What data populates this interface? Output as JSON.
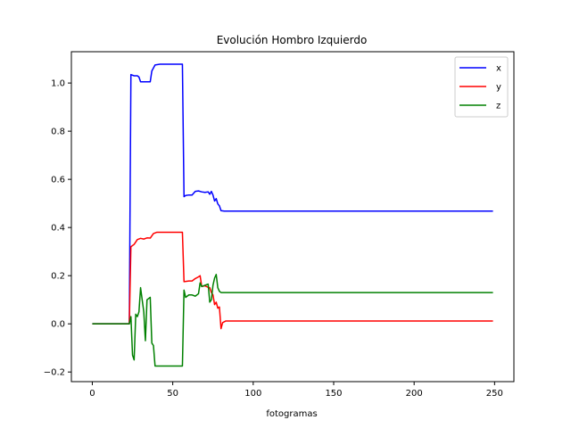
{
  "chart_data": {
    "type": "line",
    "title": "Evolución Hombro Izquierdo",
    "xlabel": "fotogramas",
    "ylabel": "",
    "xlim": [
      -13,
      262
    ],
    "ylim": [
      -0.24,
      1.13
    ],
    "xticks": [
      0,
      50,
      100,
      150,
      200,
      250
    ],
    "xtick_labels": [
      "0",
      "50",
      "100",
      "150",
      "200",
      "250"
    ],
    "yticks": [
      -0.2,
      0.0,
      0.2,
      0.4,
      0.6,
      0.8,
      1.0
    ],
    "ytick_labels": [
      "−0.2",
      "0.0",
      "0.2",
      "0.4",
      "0.6",
      "0.8",
      "1.0"
    ],
    "grid": false,
    "legend_position": "top-right",
    "series": [
      {
        "name": "x",
        "color": "#0000ff",
        "points": [
          [
            0,
            0
          ],
          [
            23,
            0
          ],
          [
            24,
            1.035
          ],
          [
            26,
            1.03
          ],
          [
            28,
            1.03
          ],
          [
            29,
            1.025
          ],
          [
            30,
            1.005
          ],
          [
            32,
            1.005
          ],
          [
            34,
            1.005
          ],
          [
            36,
            1.005
          ],
          [
            37,
            1.05
          ],
          [
            39,
            1.075
          ],
          [
            42,
            1.078
          ],
          [
            48,
            1.078
          ],
          [
            52,
            1.078
          ],
          [
            55,
            1.078
          ],
          [
            56,
            1.078
          ],
          [
            57,
            0.528
          ],
          [
            58,
            0.533
          ],
          [
            60,
            0.535
          ],
          [
            62,
            0.535
          ],
          [
            64,
            0.55
          ],
          [
            66,
            0.552
          ],
          [
            68,
            0.548
          ],
          [
            70,
            0.546
          ],
          [
            72,
            0.548
          ],
          [
            73,
            0.538
          ],
          [
            74,
            0.55
          ],
          [
            75,
            0.535
          ],
          [
            76,
            0.51
          ],
          [
            77,
            0.52
          ],
          [
            78,
            0.498
          ],
          [
            79,
            0.49
          ],
          [
            80,
            0.47
          ],
          [
            82,
            0.468
          ],
          [
            100,
            0.468
          ],
          [
            150,
            0.468
          ],
          [
            200,
            0.468
          ],
          [
            249,
            0.468
          ]
        ]
      },
      {
        "name": "y",
        "color": "#ff0000",
        "points": [
          [
            0,
            0
          ],
          [
            23,
            0
          ],
          [
            24,
            0.32
          ],
          [
            26,
            0.33
          ],
          [
            28,
            0.35
          ],
          [
            30,
            0.355
          ],
          [
            32,
            0.352
          ],
          [
            34,
            0.357
          ],
          [
            36,
            0.356
          ],
          [
            38,
            0.375
          ],
          [
            40,
            0.38
          ],
          [
            45,
            0.38
          ],
          [
            50,
            0.38
          ],
          [
            55,
            0.38
          ],
          [
            56,
            0.38
          ],
          [
            57,
            0.175
          ],
          [
            60,
            0.178
          ],
          [
            62,
            0.178
          ],
          [
            64,
            0.188
          ],
          [
            66,
            0.195
          ],
          [
            67,
            0.2
          ],
          [
            68,
            0.155
          ],
          [
            70,
            0.158
          ],
          [
            72,
            0.152
          ],
          [
            73,
            0.15
          ],
          [
            74,
            0.13
          ],
          [
            75,
            0.12
          ],
          [
            76,
            0.08
          ],
          [
            77,
            0.09
          ],
          [
            78,
            0.065
          ],
          [
            79,
            0.07
          ],
          [
            80,
            -0.02
          ],
          [
            81,
            0.005
          ],
          [
            83,
            0.012
          ],
          [
            100,
            0.012
          ],
          [
            150,
            0.012
          ],
          [
            200,
            0.012
          ],
          [
            249,
            0.012
          ]
        ]
      },
      {
        "name": "z",
        "color": "#008000",
        "points": [
          [
            0,
            0
          ],
          [
            23,
            0
          ],
          [
            24,
            0.03
          ],
          [
            25,
            -0.13
          ],
          [
            26,
            -0.15
          ],
          [
            27,
            0.04
          ],
          [
            28,
            0.03
          ],
          [
            29,
            0.05
          ],
          [
            30,
            0.15
          ],
          [
            31,
            0.1
          ],
          [
            32,
            0.05
          ],
          [
            33,
            -0.07
          ],
          [
            34,
            0.1
          ],
          [
            36,
            0.11
          ],
          [
            37,
            -0.08
          ],
          [
            38,
            -0.09
          ],
          [
            39,
            -0.175
          ],
          [
            42,
            -0.175
          ],
          [
            48,
            -0.175
          ],
          [
            54,
            -0.175
          ],
          [
            56,
            -0.175
          ],
          [
            57,
            0.14
          ],
          [
            58,
            0.11
          ],
          [
            60,
            0.12
          ],
          [
            62,
            0.12
          ],
          [
            64,
            0.115
          ],
          [
            66,
            0.125
          ],
          [
            67,
            0.17
          ],
          [
            68,
            0.155
          ],
          [
            70,
            0.16
          ],
          [
            72,
            0.165
          ],
          [
            73,
            0.09
          ],
          [
            74,
            0.1
          ],
          [
            75,
            0.16
          ],
          [
            76,
            0.19
          ],
          [
            77,
            0.205
          ],
          [
            78,
            0.15
          ],
          [
            79,
            0.135
          ],
          [
            80,
            0.13
          ],
          [
            82,
            0.13
          ],
          [
            100,
            0.13
          ],
          [
            150,
            0.13
          ],
          [
            200,
            0.13
          ],
          [
            249,
            0.13
          ]
        ]
      }
    ]
  }
}
